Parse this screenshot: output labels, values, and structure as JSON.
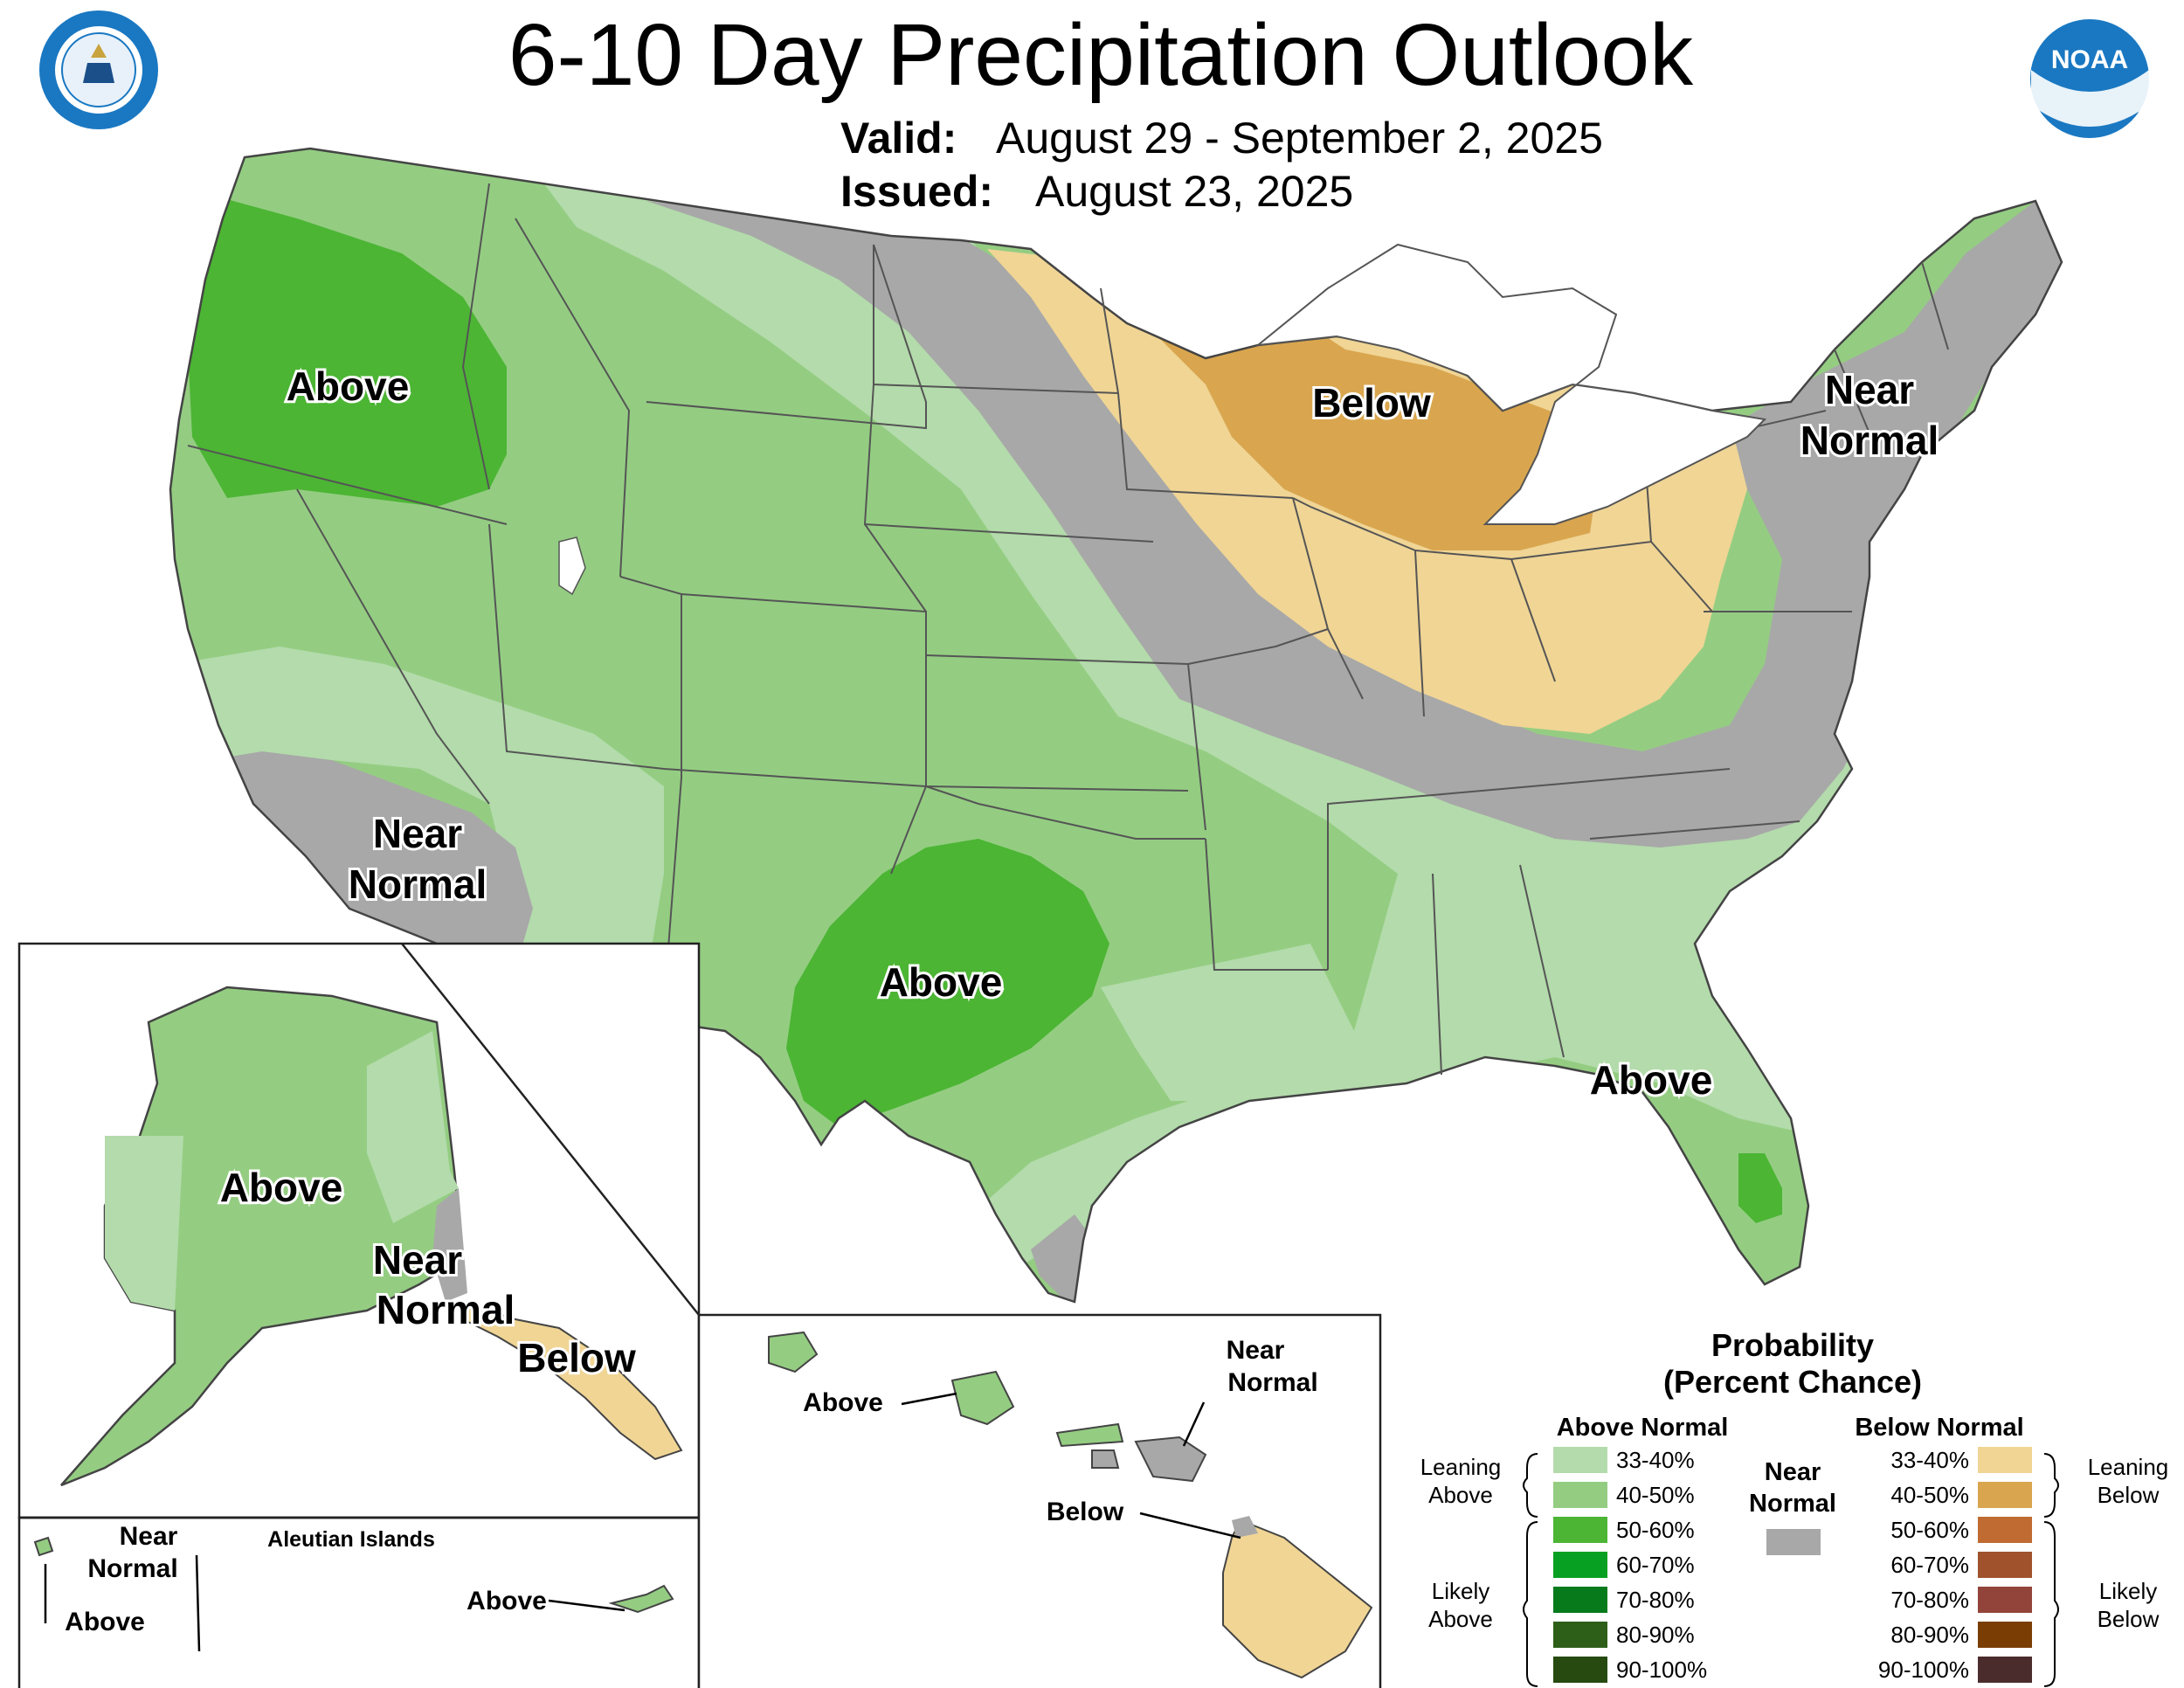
{
  "title": "6-10 Day Precipitation Outlook",
  "valid_label": "Valid:",
  "valid_value": "August 29 - September 2, 2025",
  "issued_label": "Issued:",
  "issued_value": "August 23, 2025",
  "logos": {
    "left": "Department of Commerce seal",
    "right": "NOAA logo"
  },
  "noaa_text": "NOAA",
  "colors": {
    "above_33_40": "#b3dbab",
    "above_40_50": "#94cd82",
    "above_50_60": "#4cb534",
    "above_60_70": "#07a022",
    "above_70_80": "#077a1b",
    "above_80_90": "#2d5f19",
    "above_90_100": "#264a10",
    "near_normal": "#a8a8a8",
    "below_33_40": "#f0d595",
    "below_40_50": "#d9a64f",
    "below_50_60": "#c06b32",
    "below_60_70": "#a0522c",
    "below_70_80": "#93443a",
    "below_80_90": "#7a3e05",
    "below_90_100": "#4b2c2c"
  },
  "map_labels": {
    "conus_northwest": "Above",
    "conus_great_lakes": "Below",
    "conus_northeast_line1": "Near",
    "conus_northeast_line2": "Normal",
    "conus_southwest_line1": "Near",
    "conus_southwest_line2": "Normal",
    "conus_southern_plains": "Above",
    "conus_southeast": "Above",
    "alaska_main": "Above",
    "alaska_se_line1": "Near",
    "alaska_se_line2": "Normal",
    "alaska_panhandle": "Below",
    "aleutian_title": "Aleutian Islands",
    "aleutian_near_line1": "Near",
    "aleutian_near_line2": "Normal",
    "aleutian_above_west": "Above",
    "aleutian_above_east": "Above",
    "hawaii_above": "Above",
    "hawaii_near_line1": "Near",
    "hawaii_near_line2": "Normal",
    "hawaii_below": "Below"
  },
  "legend": {
    "title_line1": "Probability",
    "title_line2": "(Percent Chance)",
    "above_header": "Above Normal",
    "below_header": "Below Normal",
    "near_line1": "Near",
    "near_line2": "Normal",
    "leaning_above_line1": "Leaning",
    "leaning_above_line2": "Above",
    "likely_above_line1": "Likely",
    "likely_above_line2": "Above",
    "leaning_below_line1": "Leaning",
    "leaning_below_line2": "Below",
    "likely_below_line1": "Likely",
    "likely_below_line2": "Below",
    "ranges": [
      "33-40%",
      "40-50%",
      "50-60%",
      "60-70%",
      "70-80%",
      "80-90%",
      "90-100%"
    ]
  }
}
